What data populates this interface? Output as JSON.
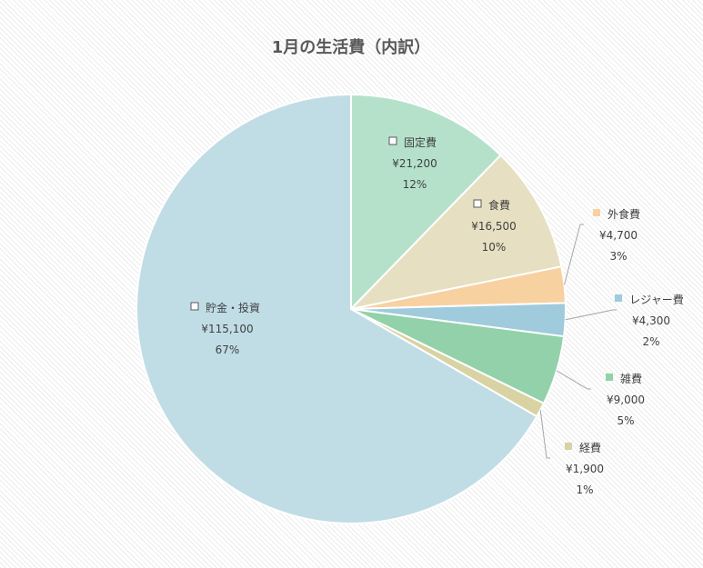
{
  "chart_data": {
    "type": "pie",
    "title": "1月の生活費（内訳）",
    "legend": "none",
    "slices": [
      {
        "name": "固定費",
        "value": 21200,
        "value_label": "¥21,200",
        "percent_label": "12%",
        "color": "#b5e1cb"
      },
      {
        "name": "食費",
        "value": 16500,
        "value_label": "¥16,500",
        "percent_label": "10%",
        "color": "#e6dfc1"
      },
      {
        "name": "外食費",
        "value": 4700,
        "value_label": "¥4,700",
        "percent_label": "3%",
        "color": "#f8d1a1"
      },
      {
        "name": "レジャー費",
        "value": 4300,
        "value_label": "¥4,300",
        "percent_label": "2%",
        "color": "#9fcbdd"
      },
      {
        "name": "雑費",
        "value": 9000,
        "value_label": "¥9,000",
        "percent_label": "5%",
        "color": "#92d1a9"
      },
      {
        "name": "経費",
        "value": 1900,
        "value_label": "¥1,900",
        "percent_label": "1%",
        "color": "#d9d2a2"
      },
      {
        "name": "貯金・投資",
        "value": 115100,
        "value_label": "¥115,100",
        "percent_label": "67%",
        "color": "#c0dde6"
      }
    ]
  }
}
